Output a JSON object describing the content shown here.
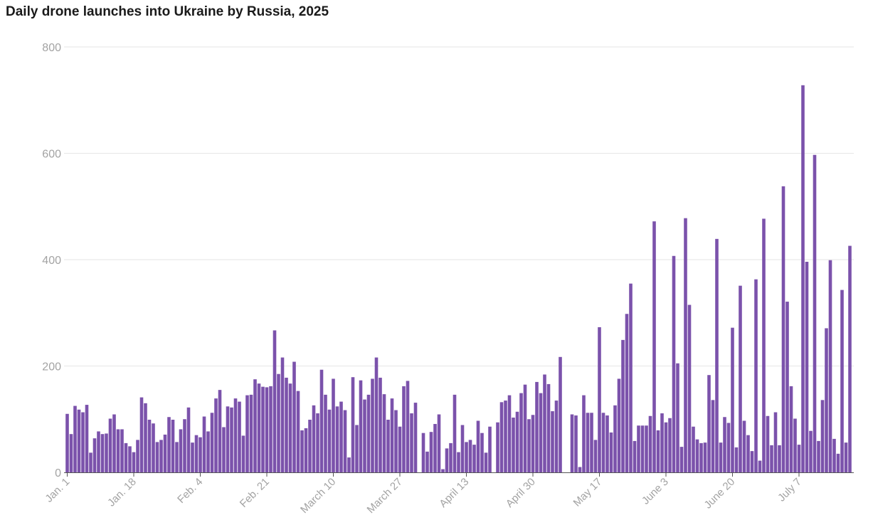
{
  "chart_data": {
    "type": "bar",
    "title": "Daily drone launches into Ukraine by Russia, 2025",
    "xlabel": "",
    "ylabel": "",
    "ylim": [
      0,
      800
    ],
    "yticks": [
      0,
      200,
      400,
      600,
      800
    ],
    "grid": true,
    "bar_color": "#7b52ab",
    "x_tick_labels": [
      {
        "label": "Jan. 1",
        "day": 1
      },
      {
        "label": "Jan. 18",
        "day": 18
      },
      {
        "label": "Feb. 4",
        "day": 35
      },
      {
        "label": "Feb. 21",
        "day": 52
      },
      {
        "label": "March 10",
        "day": 69
      },
      {
        "label": "March 27",
        "day": 86
      },
      {
        "label": "April 13",
        "day": 103
      },
      {
        "label": "April 30",
        "day": 120
      },
      {
        "label": "May 17",
        "day": 137
      },
      {
        "label": "June 3",
        "day": 154
      },
      {
        "label": "June 20",
        "day": 171
      },
      {
        "label": "July 7",
        "day": 188
      }
    ],
    "day_of_year": [
      1,
      2,
      3,
      4,
      5,
      6,
      7,
      8,
      9,
      10,
      11,
      12,
      13,
      14,
      15,
      16,
      17,
      18,
      19,
      20,
      21,
      22,
      23,
      24,
      25,
      26,
      27,
      28,
      29,
      30,
      31,
      32,
      33,
      34,
      35,
      36,
      37,
      38,
      39,
      40,
      41,
      42,
      43,
      44,
      45,
      46,
      47,
      48,
      49,
      50,
      51,
      52,
      53,
      54,
      55,
      56,
      57,
      58,
      59,
      60,
      61,
      62,
      63,
      64,
      65,
      66,
      67,
      68,
      69,
      70,
      71,
      72,
      73,
      74,
      75,
      76,
      77,
      78,
      79,
      80,
      81,
      82,
      83,
      84,
      85,
      86,
      87,
      88,
      89,
      90,
      91,
      92,
      93,
      94,
      95,
      96,
      97,
      98,
      99,
      100,
      101,
      102,
      103,
      104,
      105,
      106,
      107,
      108,
      109,
      110,
      111,
      112,
      113,
      114,
      115,
      116,
      117,
      118,
      119,
      120,
      121,
      122,
      123,
      124,
      125,
      126,
      127,
      128,
      129,
      130,
      131,
      132,
      133,
      134,
      135,
      136,
      137,
      138,
      139,
      140,
      141,
      142,
      143,
      144,
      145,
      146,
      147,
      148,
      149,
      150,
      151,
      152,
      153,
      154,
      155,
      156,
      157,
      158,
      159,
      160,
      161,
      162,
      163,
      164,
      165,
      166,
      167,
      168,
      169,
      170,
      171,
      172,
      173,
      174,
      175,
      176,
      177,
      178,
      179,
      180,
      181,
      182,
      183,
      184,
      185,
      186,
      187,
      188,
      189,
      190,
      191,
      192,
      193,
      194,
      195,
      196,
      197,
      198,
      199,
      200,
      201,
      202
    ],
    "values": [
      110,
      72,
      125,
      118,
      113,
      127,
      37,
      64,
      77,
      72,
      73,
      101,
      109,
      81,
      81,
      55,
      49,
      38,
      61,
      141,
      130,
      99,
      92,
      57,
      61,
      71,
      104,
      99,
      57,
      81,
      100,
      122,
      56,
      70,
      66,
      105,
      77,
      112,
      139,
      155,
      85,
      124,
      122,
      139,
      133,
      69,
      145,
      146,
      175,
      167,
      161,
      160,
      162,
      267,
      185,
      216,
      178,
      167,
      208,
      153,
      79,
      83,
      99,
      126,
      111,
      193,
      146,
      118,
      176,
      124,
      133,
      117,
      28,
      179,
      89,
      173,
      137,
      146,
      176,
      216,
      178,
      147,
      99,
      139,
      117,
      86,
      162,
      172,
      111,
      131,
      0,
      74,
      39,
      76,
      91,
      109,
      6,
      45,
      55,
      146,
      38,
      89,
      57,
      61,
      52,
      97,
      74,
      37,
      86,
      0,
      94,
      132,
      135,
      145,
      103,
      114,
      149,
      165,
      100,
      108,
      170,
      149,
      184,
      166,
      115,
      135,
      217,
      0,
      0,
      109,
      107,
      10,
      145,
      112,
      112,
      61,
      273,
      112,
      107,
      75,
      126,
      176,
      249,
      298,
      355,
      59,
      88,
      88,
      88,
      106,
      472,
      79,
      111,
      94,
      102,
      407,
      205,
      48,
      478,
      315,
      86,
      62,
      55,
      56,
      183,
      136,
      439,
      56,
      104,
      93,
      272,
      47,
      351,
      97,
      70,
      40,
      363,
      22,
      477,
      106,
      51,
      113,
      51,
      538,
      321,
      162,
      101,
      52,
      728,
      396,
      78,
      597,
      59,
      136,
      271,
      399,
      63,
      35,
      343,
      56,
      426
    ]
  }
}
